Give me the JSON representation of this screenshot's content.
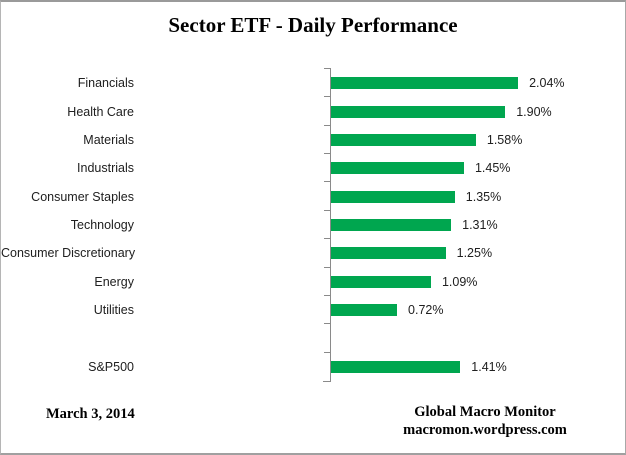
{
  "chart_data": {
    "type": "bar",
    "orientation": "horizontal",
    "title": "Sector ETF - Daily Performance",
    "categories": [
      "Financials",
      "Health Care",
      "Materials",
      "Industrials",
      "Consumer Staples",
      "Technology",
      "Consumer Discretionary",
      "Energy",
      "Utilities",
      "",
      "S&P500"
    ],
    "values": [
      2.04,
      1.9,
      1.58,
      1.45,
      1.35,
      1.31,
      1.25,
      1.09,
      0.72,
      null,
      1.41
    ],
    "value_labels": [
      "2.04%",
      "1.90%",
      "1.58%",
      "1.45%",
      "1.35%",
      "1.31%",
      "1.25%",
      "1.09%",
      "0.72%",
      "",
      "1.41%"
    ],
    "unit": "%",
    "bar_color": "#00a64f",
    "axis_color": "#8a8a8a",
    "grid": false,
    "legend": "none"
  },
  "footer": {
    "date": "March 3, 2014",
    "credit_line1": "Global Macro Monitor",
    "credit_line2": "macromon.wordpress.com"
  }
}
